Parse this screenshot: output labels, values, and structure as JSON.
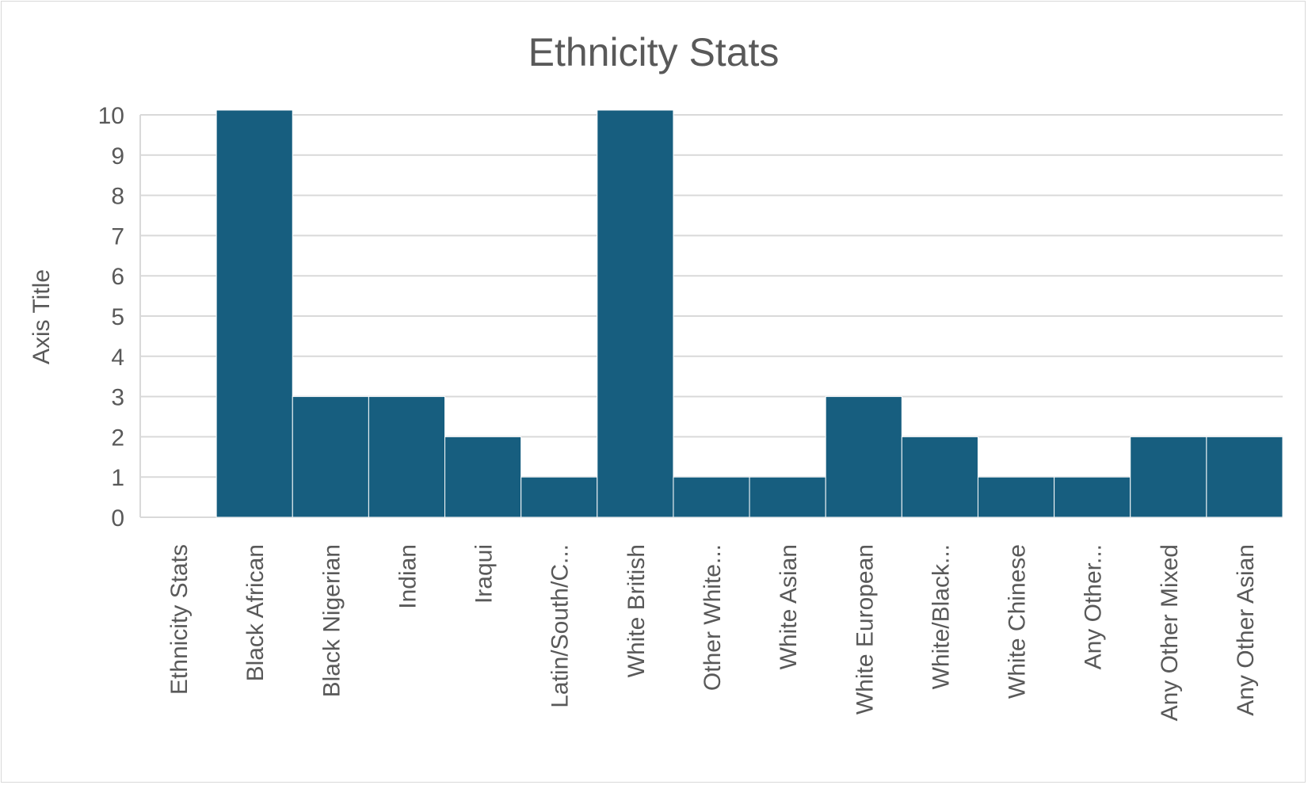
{
  "chart_data": {
    "type": "bar",
    "title": "Ethnicity Stats",
    "xlabel": "",
    "ylabel": "Axis Title",
    "ylim": [
      0,
      10
    ],
    "yticks": [
      0,
      1,
      2,
      3,
      4,
      5,
      6,
      7,
      8,
      9,
      10
    ],
    "grid": true,
    "bar_color": "#175E7F",
    "categories": [
      "Ethnicity Stats",
      "Black African",
      "Black Nigerian",
      "Indian",
      "Iraqui",
      "Latin/South/C...",
      "White British",
      "Other White...",
      "White Asian",
      "White European",
      "White/Black...",
      "White Chinese",
      "Any Other...",
      "Any Other Mixed",
      "Any Other Asian"
    ],
    "values": [
      0,
      10,
      3,
      3,
      2,
      1,
      10,
      1,
      1,
      3,
      2,
      1,
      1,
      2,
      2
    ]
  }
}
